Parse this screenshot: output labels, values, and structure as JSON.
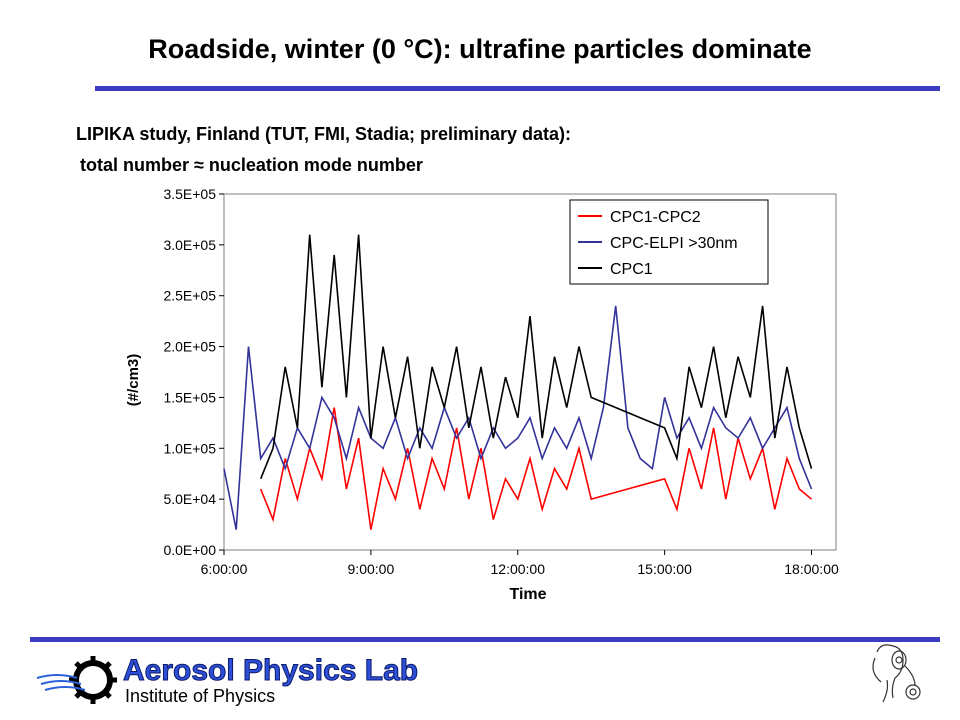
{
  "slide": {
    "title": "Roadside, winter (0 °C): ultrafine particles dominate",
    "subtitle_line1": "LIPIKA study, Finland (TUT, FMI, Stadia; preliminary data):",
    "subtitle_line2": "total number ≈ nucleation mode number",
    "rule_color": "#3b3bc4"
  },
  "logo": {
    "name": "Aerosol Physics Lab",
    "tagline": "Institute of Physics"
  },
  "chart_data": {
    "type": "line",
    "xlabel": "Time",
    "ylabel": "(#/cm3)",
    "x_range": [
      "06:00:00",
      "18:30:00"
    ],
    "x_ticks": [
      "6:00:00",
      "9:00:00",
      "12:00:00",
      "15:00:00",
      "18:00:00"
    ],
    "ylim": [
      0,
      350000
    ],
    "y_ticks": [
      "0.0E+00",
      "5.0E+04",
      "1.0E+05",
      "1.5E+05",
      "2.0E+05",
      "2.5E+05",
      "3.0E+05",
      "3.5E+05"
    ],
    "legend_position": "top-right",
    "grid": false,
    "series": [
      {
        "name": "CPC1-CPC2",
        "color": "#ff0000",
        "x": [
          "06:45",
          "07:00",
          "07:15",
          "07:30",
          "07:45",
          "08:00",
          "08:15",
          "08:30",
          "08:45",
          "09:00",
          "09:15",
          "09:30",
          "09:45",
          "10:00",
          "10:15",
          "10:30",
          "10:45",
          "11:00",
          "11:15",
          "11:30",
          "11:45",
          "12:00",
          "12:15",
          "12:30",
          "12:45",
          "13:00",
          "13:15",
          "13:30",
          "15:00",
          "15:15",
          "15:30",
          "15:45",
          "16:00",
          "16:15",
          "16:30",
          "16:45",
          "17:00",
          "17:15",
          "17:30",
          "17:45",
          "18:00"
        ],
        "y": [
          60000,
          30000,
          90000,
          50000,
          100000,
          70000,
          140000,
          60000,
          110000,
          20000,
          80000,
          50000,
          100000,
          40000,
          90000,
          60000,
          120000,
          50000,
          100000,
          30000,
          70000,
          50000,
          90000,
          40000,
          80000,
          60000,
          100000,
          50000,
          70000,
          40000,
          100000,
          60000,
          120000,
          50000,
          110000,
          70000,
          100000,
          40000,
          90000,
          60000,
          50000
        ]
      },
      {
        "name": "CPC-ELPI >30nm",
        "color": "#333399",
        "x": [
          "06:00",
          "06:15",
          "06:30",
          "06:45",
          "07:00",
          "07:15",
          "07:30",
          "07:45",
          "08:00",
          "08:15",
          "08:30",
          "08:45",
          "09:00",
          "09:15",
          "09:30",
          "09:45",
          "10:00",
          "10:15",
          "10:30",
          "10:45",
          "11:00",
          "11:15",
          "11:30",
          "11:45",
          "12:00",
          "12:15",
          "12:30",
          "12:45",
          "13:00",
          "13:15",
          "13:30",
          "13:45",
          "14:00",
          "14:15",
          "14:30",
          "14:45",
          "15:00",
          "15:15",
          "15:30",
          "15:45",
          "16:00",
          "16:15",
          "16:30",
          "16:45",
          "17:00",
          "17:15",
          "17:30",
          "17:45",
          "18:00"
        ],
        "y": [
          80000,
          20000,
          200000,
          90000,
          110000,
          80000,
          120000,
          100000,
          150000,
          130000,
          90000,
          140000,
          110000,
          100000,
          130000,
          90000,
          120000,
          100000,
          140000,
          110000,
          130000,
          90000,
          120000,
          100000,
          110000,
          130000,
          90000,
          120000,
          100000,
          130000,
          90000,
          140000,
          240000,
          120000,
          90000,
          80000,
          150000,
          110000,
          130000,
          100000,
          140000,
          120000,
          110000,
          130000,
          100000,
          120000,
          140000,
          90000,
          60000
        ]
      },
      {
        "name": "CPC1",
        "color": "#000000",
        "x": [
          "06:45",
          "07:00",
          "07:15",
          "07:30",
          "07:45",
          "08:00",
          "08:15",
          "08:30",
          "08:45",
          "09:00",
          "09:15",
          "09:30",
          "09:45",
          "10:00",
          "10:15",
          "10:30",
          "10:45",
          "11:00",
          "11:15",
          "11:30",
          "11:45",
          "12:00",
          "12:15",
          "12:30",
          "12:45",
          "13:00",
          "13:15",
          "13:30",
          "15:00",
          "15:15",
          "15:30",
          "15:45",
          "16:00",
          "16:15",
          "16:30",
          "16:45",
          "17:00",
          "17:15",
          "17:30",
          "17:45",
          "18:00"
        ],
        "y": [
          70000,
          100000,
          180000,
          120000,
          310000,
          160000,
          290000,
          150000,
          310000,
          110000,
          200000,
          130000,
          190000,
          100000,
          180000,
          140000,
          200000,
          120000,
          180000,
          110000,
          170000,
          130000,
          230000,
          110000,
          190000,
          140000,
          200000,
          150000,
          120000,
          90000,
          180000,
          140000,
          200000,
          130000,
          190000,
          150000,
          240000,
          110000,
          180000,
          120000,
          80000
        ]
      }
    ]
  }
}
